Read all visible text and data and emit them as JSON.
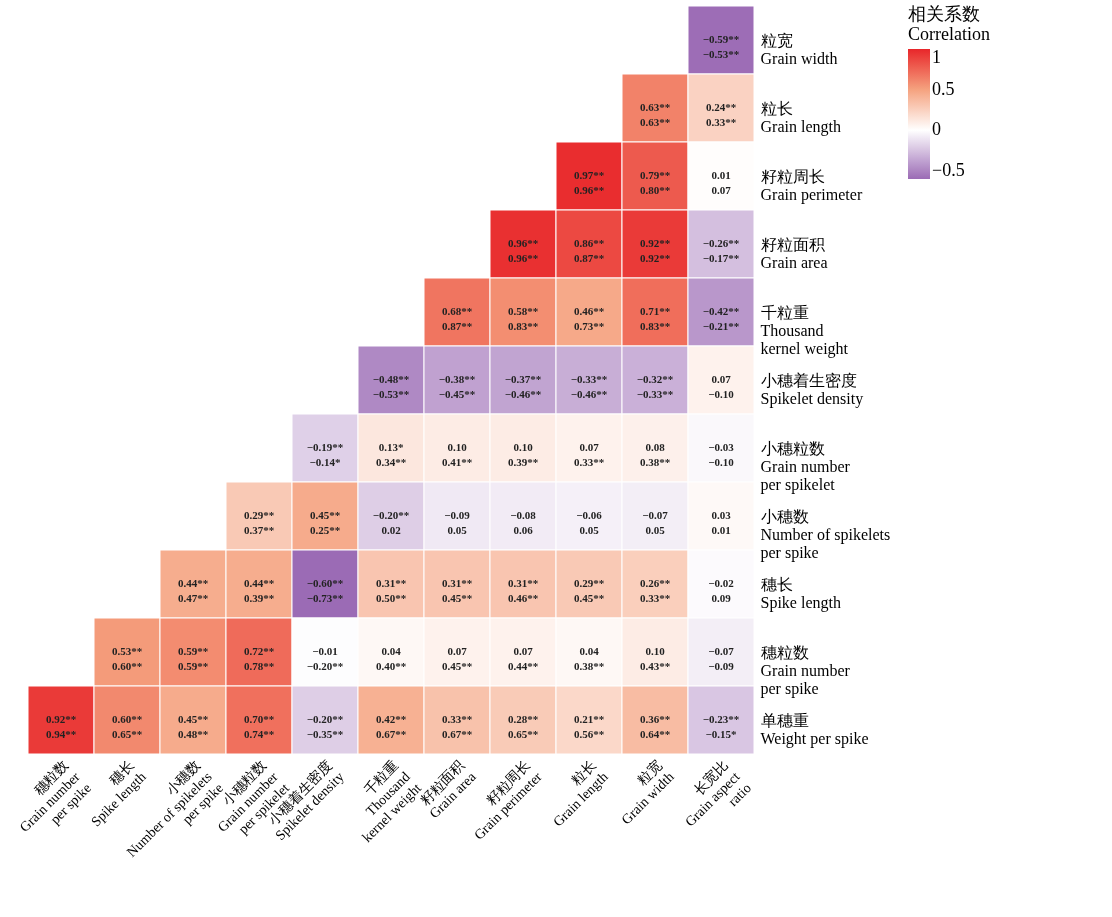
{
  "chart_data": {
    "type": "heatmap",
    "legend_title": "相关系数\nCorrelation",
    "categories": [
      "穗粒数\nGrain number\nper spike",
      "穗长\nSpike length",
      "小穗数\nNumber of spikelets\nper spike",
      "小穗粒数\nGrain number\nper spikelet",
      "小穗着生密度\nSpikelet density",
      "千粒重\nThousand\nkernel weight",
      "籽粒面积\nGrain area",
      "籽粒周长\nGrain perimeter",
      "粒长\nGrain length",
      "粒宽\nGrain width",
      "长宽比\nGrain aspect\nratio"
    ],
    "y_categories": [
      "粒宽\nGrain width",
      "粒长\nGrain length",
      "籽粒周长\nGrain perimeter",
      "籽粒面积\nGrain area",
      "千粒重\nThousand\nkernel weight",
      "小穗着生密度\nSpikelet density",
      "小穗粒数\nGrain number\nper spikelet",
      "小穗数\nNumber of spikelets\nper spike",
      "穗长\nSpike length",
      "穗粒数\nGrain number\nper spike",
      "单穗重\nWeight per spike"
    ],
    "cells": [
      [
        null,
        null,
        null,
        null,
        null,
        null,
        null,
        null,
        null,
        null,
        -0.59
      ],
      [
        null,
        null,
        null,
        null,
        null,
        null,
        null,
        null,
        null,
        0.63,
        0.24
      ],
      [
        null,
        null,
        null,
        null,
        null,
        null,
        null,
        null,
        0.97,
        0.79,
        0.01
      ],
      [
        null,
        null,
        null,
        null,
        null,
        null,
        null,
        0.96,
        0.86,
        0.92,
        -0.26
      ],
      [
        null,
        null,
        null,
        null,
        null,
        null,
        0.68,
        0.58,
        0.46,
        0.71,
        -0.42
      ],
      [
        null,
        null,
        null,
        null,
        null,
        -0.48,
        -0.38,
        -0.37,
        -0.33,
        -0.32,
        0.07
      ],
      [
        null,
        null,
        null,
        null,
        -0.19,
        0.13,
        0.1,
        0.1,
        0.07,
        0.08,
        -0.03
      ],
      [
        null,
        null,
        null,
        0.29,
        0.45,
        -0.2,
        -0.09,
        -0.08,
        -0.06,
        -0.07,
        0.03
      ],
      [
        null,
        null,
        0.44,
        0.44,
        -0.6,
        0.31,
        0.31,
        0.31,
        0.29,
        0.26,
        -0.02
      ],
      [
        null,
        0.53,
        0.59,
        0.72,
        -0.01,
        0.04,
        0.07,
        0.07,
        0.04,
        0.1,
        -0.07
      ],
      [
        0.92,
        0.6,
        0.45,
        0.7,
        -0.2,
        0.42,
        0.33,
        0.28,
        0.21,
        0.36,
        -0.23
      ]
    ],
    "cell_labels": [
      [
        null,
        null,
        null,
        null,
        null,
        null,
        null,
        null,
        null,
        null,
        "−0.59**\n−0.53**"
      ],
      [
        null,
        null,
        null,
        null,
        null,
        null,
        null,
        null,
        null,
        "0.63**\n0.63**",
        "0.24**\n0.33**"
      ],
      [
        null,
        null,
        null,
        null,
        null,
        null,
        null,
        null,
        "0.97**\n0.96**",
        "0.79**\n0.80**",
        "0.01\n0.07"
      ],
      [
        null,
        null,
        null,
        null,
        null,
        null,
        null,
        "0.96**\n0.96**",
        "0.86**\n0.87**",
        "0.92**\n0.92**",
        "−0.26**\n−0.17**"
      ],
      [
        null,
        null,
        null,
        null,
        null,
        null,
        "0.68**\n0.87**",
        "0.58**\n0.83**",
        "0.46**\n0.73**",
        "0.71**\n0.83**",
        "−0.42**\n−0.21**"
      ],
      [
        null,
        null,
        null,
        null,
        null,
        "−0.48**\n−0.53**",
        "−0.38**\n−0.45**",
        "−0.37**\n−0.46**",
        "−0.33**\n−0.46**",
        "−0.32**\n−0.33**",
        "0.07\n−0.10"
      ],
      [
        null,
        null,
        null,
        null,
        "−0.19**\n−0.14*",
        "0.13*\n0.34**",
        "0.10\n0.41**",
        "0.10\n0.39**",
        "0.07\n0.33**",
        "0.08\n0.38**",
        "−0.03\n−0.10"
      ],
      [
        null,
        null,
        null,
        "0.29**\n0.37**",
        "0.45**\n0.25**",
        "−0.20**\n0.02",
        "−0.09\n0.05",
        "−0.08\n0.06",
        "−0.06\n0.05",
        "−0.07\n0.05",
        "0.03\n0.01"
      ],
      [
        null,
        null,
        "0.44**\n0.47**",
        "0.44**\n0.39**",
        "−0.60**\n−0.73**",
        "0.31**\n0.50**",
        "0.31**\n0.45**",
        "0.31**\n0.46**",
        "0.29**\n0.45**",
        "0.26**\n0.33**",
        "−0.02\n0.09"
      ],
      [
        null,
        "0.53**\n0.60**",
        "0.59**\n0.59**",
        "0.72**\n0.78**",
        "−0.01\n−0.20**",
        "0.04\n0.40**",
        "0.07\n0.45**",
        "0.07\n0.44**",
        "0.04\n0.38**",
        "0.10\n0.43**",
        "−0.07\n−0.09"
      ],
      [
        "0.92**\n0.94**",
        "0.60**\n0.65**",
        "0.45**\n0.48**",
        "0.70**\n0.74**",
        "−0.20**\n−0.35**",
        "0.42**\n0.67**",
        "0.33**\n0.67**",
        "0.28**\n0.65**",
        "0.21**\n0.56**",
        "0.36**\n0.64**",
        "−0.23**\n−0.15*"
      ]
    ],
    "clim": [
      -0.6,
      1
    ],
    "cticks": [
      1,
      0.5,
      0,
      -0.5
    ],
    "colors": [
      "#9b6bb5",
      "#ffffff",
      "#f5a27f",
      "#e8262a"
    ],
    "grid": false
  }
}
